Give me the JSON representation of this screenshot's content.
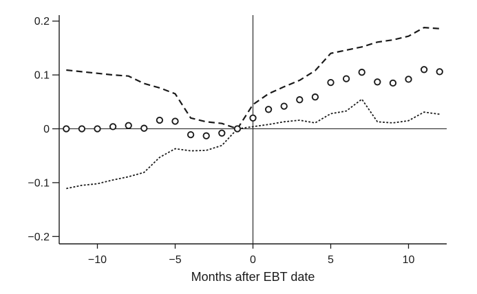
{
  "figure": {
    "background": "#ffffff",
    "ink_color": "#1a1a1a"
  },
  "chart_data": {
    "type": "line",
    "subtype": "event-study point estimates with upper and lower dashed confidence bands",
    "title": "",
    "xlabel": "Months after EBT date",
    "ylabel": "",
    "grid": false,
    "legend": "none",
    "xlim": [
      -12.5,
      12.5
    ],
    "ylim": [
      -0.214,
      0.211
    ],
    "x_months": [
      -12,
      -11,
      -10,
      -9,
      -8,
      -7,
      -6,
      -5,
      -4,
      -3,
      -2,
      -1,
      0,
      1,
      2,
      3,
      4,
      5,
      6,
      7,
      8,
      9,
      10,
      11,
      12
    ],
    "series": [
      {
        "name": "point-estimates",
        "marker": "open-circle",
        "line": "none",
        "values": [
          0.0,
          0.0,
          0.0,
          0.004,
          0.006,
          0.001,
          0.016,
          0.014,
          -0.011,
          -0.013,
          -0.008,
          0.0,
          0.02,
          0.036,
          0.042,
          0.054,
          0.059,
          0.086,
          0.093,
          0.105,
          0.087,
          0.085,
          0.092,
          0.11,
          0.106
        ]
      },
      {
        "name": "upper-band",
        "marker": "none",
        "line": "long-dash",
        "values": [
          0.109,
          0.106,
          0.103,
          0.1,
          0.098,
          0.084,
          0.076,
          0.065,
          0.02,
          0.013,
          0.01,
          0.0,
          0.045,
          0.065,
          0.078,
          0.09,
          0.108,
          0.14,
          0.146,
          0.152,
          0.161,
          0.165,
          0.172,
          0.188,
          0.186
        ]
      },
      {
        "name": "lower-band",
        "marker": "none",
        "line": "dotted",
        "values": [
          -0.111,
          -0.105,
          -0.102,
          -0.095,
          -0.089,
          -0.081,
          -0.053,
          -0.037,
          -0.041,
          -0.04,
          -0.031,
          0.0,
          0.004,
          0.008,
          0.013,
          0.016,
          0.011,
          0.028,
          0.033,
          0.055,
          0.013,
          0.011,
          0.015,
          0.031,
          0.027
        ]
      }
    ],
    "xticks": {
      "values": [
        -10,
        -5,
        0,
        5,
        10
      ],
      "labels": [
        "−10",
        "−5",
        "0",
        "5",
        "10"
      ]
    },
    "yticks": {
      "values": [
        0.2,
        0.1,
        0,
        -0.1,
        -0.2
      ],
      "labels": [
        "0.2",
        "0.1",
        "0",
        "−0.1",
        "−0.2"
      ]
    },
    "reference_lines": {
      "horizontal_y": 0,
      "vertical_x": 0
    }
  }
}
